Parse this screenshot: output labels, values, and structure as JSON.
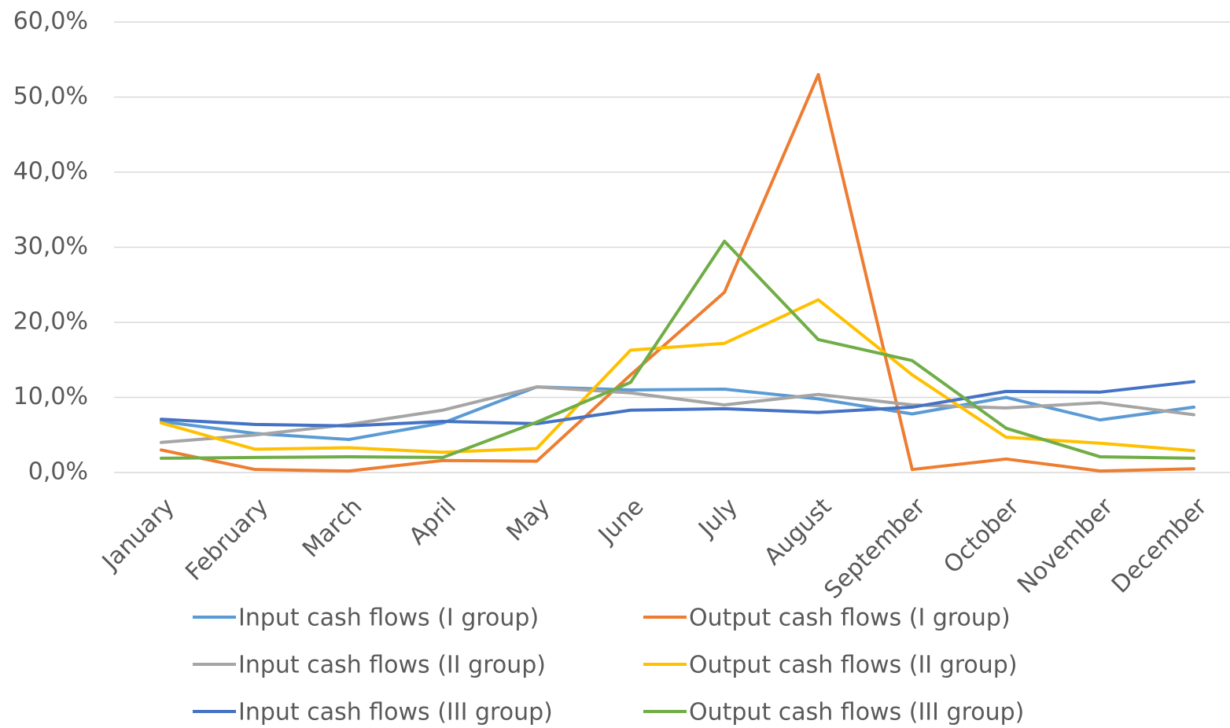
{
  "chart_data": {
    "type": "line",
    "categories": [
      "January",
      "February",
      "March",
      "April",
      "May",
      "June",
      "July",
      "August",
      "September",
      "October",
      "November",
      "December"
    ],
    "series": [
      {
        "name": "Input cash flows (I group)",
        "color": "#5b9bd5",
        "values": [
          6.8,
          5.2,
          4.4,
          6.6,
          11.4,
          11.0,
          11.1,
          9.8,
          7.8,
          10.0,
          7.0,
          8.7
        ]
      },
      {
        "name": "Output cash flows (I group)",
        "color": "#ed7d31",
        "values": [
          3.0,
          0.4,
          0.2,
          1.6,
          1.5,
          13.0,
          24.0,
          53.0,
          0.4,
          1.8,
          0.2,
          0.5
        ]
      },
      {
        "name": "Input cash flows (II group)",
        "color": "#a5a5a5",
        "values": [
          4.0,
          5.0,
          6.4,
          8.3,
          11.4,
          10.6,
          9.0,
          10.4,
          9.0,
          8.6,
          9.3,
          7.7
        ]
      },
      {
        "name": "Output cash flows (II group)",
        "color": "#ffc000",
        "values": [
          6.6,
          3.1,
          3.3,
          2.7,
          3.2,
          16.3,
          17.2,
          23.0,
          13.0,
          4.7,
          3.9,
          2.9
        ]
      },
      {
        "name": "Input cash flows (III group)",
        "color": "#4472c4",
        "values": [
          7.1,
          6.4,
          6.2,
          6.8,
          6.5,
          8.3,
          8.5,
          8.0,
          8.7,
          10.8,
          10.7,
          12.1
        ]
      },
      {
        "name": "Output cash flows (III group)",
        "color": "#70ad47",
        "values": [
          1.9,
          2.0,
          2.1,
          2.0,
          6.7,
          12.0,
          30.8,
          17.7,
          14.9,
          5.9,
          2.1,
          1.9
        ]
      }
    ],
    "ylim": [
      0,
      60
    ],
    "yticks": [
      {
        "value": 0,
        "label": "0,0%"
      },
      {
        "value": 10,
        "label": "10,0%"
      },
      {
        "value": 20,
        "label": "20,0%"
      },
      {
        "value": 30,
        "label": "30,0%"
      },
      {
        "value": 40,
        "label": "40,0%"
      },
      {
        "value": 50,
        "label": "50,0%"
      },
      {
        "value": 60,
        "label": "60,0%"
      }
    ],
    "grid": true,
    "legend": "bottom"
  }
}
